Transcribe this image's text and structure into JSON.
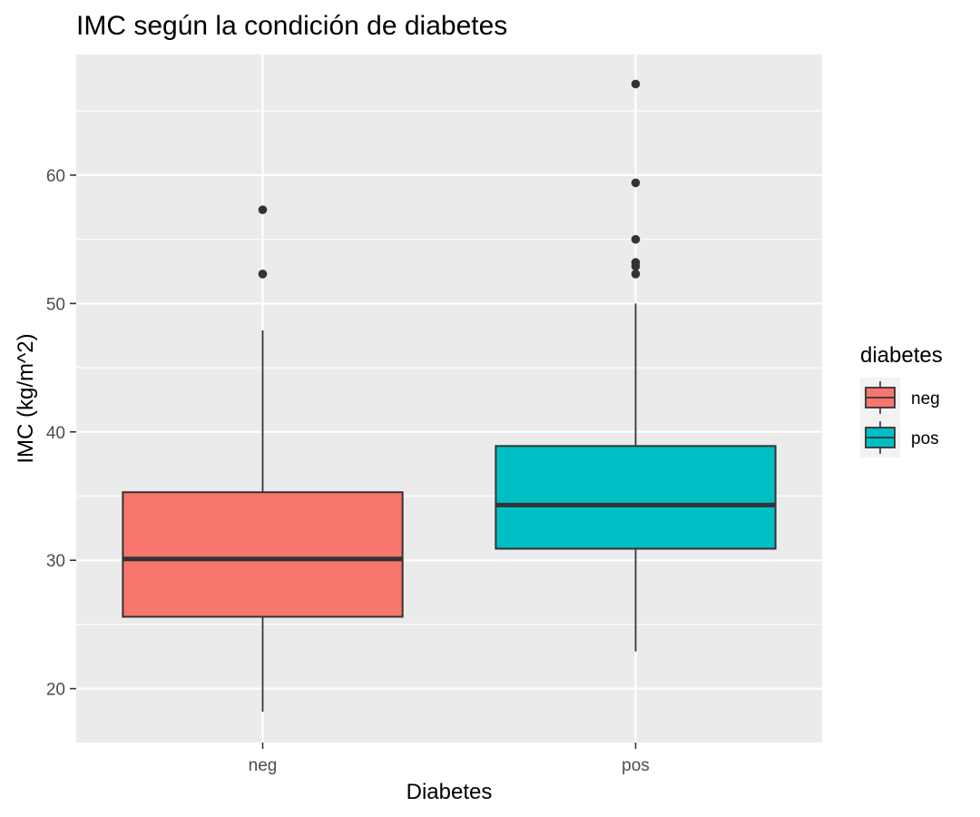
{
  "chart_data": {
    "type": "boxplot",
    "title": "IMC según la condición de diabetes",
    "xlabel": "Diabetes",
    "ylabel": "IMC (kg/m^2)",
    "categories": [
      "neg",
      "pos"
    ],
    "ylim": [
      15.8,
      69.4
    ],
    "yticks": [
      20,
      30,
      40,
      50,
      60
    ],
    "grid": true,
    "legend": {
      "title": "diabetes",
      "placement": "right",
      "entries": [
        "neg",
        "pos"
      ]
    },
    "colors": {
      "neg": "#F8766D",
      "pos": "#00BFC4",
      "panel": "#EBEBEB",
      "gridline": "#FFFFFF",
      "outline": "#333333"
    },
    "boxes": [
      {
        "category": "neg",
        "lower_whisker": 18.2,
        "q1": 25.6,
        "median": 30.1,
        "q3": 35.3,
        "upper_whisker": 47.9,
        "outliers": [
          52.3,
          57.3
        ]
      },
      {
        "category": "pos",
        "lower_whisker": 22.9,
        "q1": 30.9,
        "median": 34.3,
        "q3": 38.9,
        "upper_whisker": 50.0,
        "outliers": [
          52.3,
          52.9,
          53.2,
          55.0,
          59.4,
          67.1
        ]
      }
    ]
  }
}
